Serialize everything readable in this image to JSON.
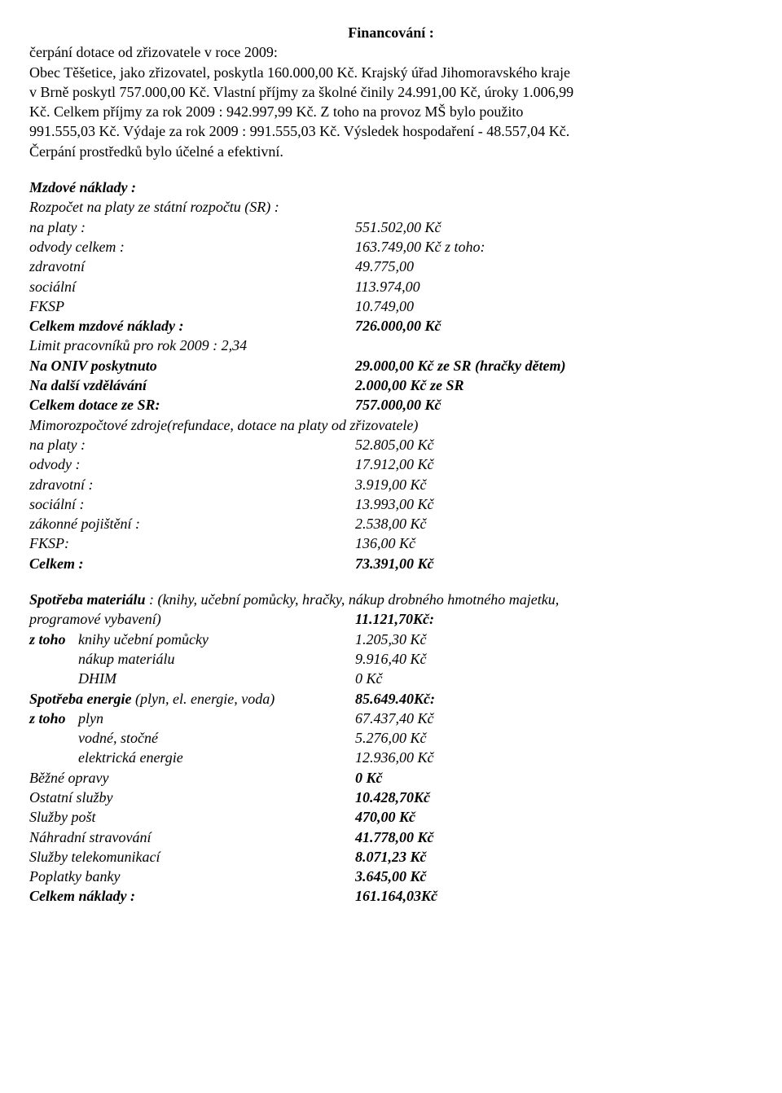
{
  "title": "Financování :",
  "intro": {
    "line1": "čerpání dotace od zřizovatele v roce 2009:",
    "line2a": "Obec Těšetice,  jako zřizovatel,  poskytla 160.000,00 Kč.  Krajský úřad  Jihomoravského kraje",
    "line2b": "v Brně poskytl 757.000,00 Kč.  Vlastní příjmy za školné činily 24.991,00 Kč, úroky 1.006,99",
    "line2c": "Kč.  Celkem příjmy za rok 2009 : 942.997,99 Kč.  Z toho na provoz MŠ bylo použito",
    "line2d": "991.555,03 Kč.  Výdaje za rok 2009 : 991.555,03 Kč.  Výsledek hospodaření - 48.557,04 Kč.",
    "line2e": "Čerpání prostředků bylo účelné a efektivní."
  },
  "mzdove": {
    "heading": "Mzdové náklady :",
    "subheading": "Rozpočet na platy ze státní rozpočtu (SR) :",
    "rows": [
      {
        "label": "na platy :",
        "value": "551.502,00 Kč",
        "labelClass": "italic",
        "valueClass": "italic"
      },
      {
        "label": "odvody celkem  :",
        "value": "163.749,00 Kč z toho:",
        "labelClass": "italic",
        "valueClass": "italic"
      },
      {
        "label": "zdravotní",
        "value": "49.775,00",
        "labelClass": "italic",
        "valueClass": "italic"
      },
      {
        "label": "sociální",
        "value": "113.974,00",
        "labelClass": "italic",
        "valueClass": "italic"
      },
      {
        "label": "FKSP",
        "value": "10.749,00",
        "labelClass": "italic",
        "valueClass": "italic"
      },
      {
        "label": "Celkem mzdové náklady :",
        "value": "726.000,00 Kč",
        "labelClass": "bolditalic",
        "valueClass": "bolditalic"
      }
    ],
    "limitLine": " Limit pracovníků pro rok 2009 : 2,34",
    "rows2": [
      {
        "label": "Na ONIV poskytnuto",
        "value": "29.000,00 Kč ze SR (hračky dětem)",
        "labelClass": "bolditalic",
        "valueClass": "bolditalic"
      },
      {
        "label": "Na další vzdělávání",
        "value": "2.000,00 Kč ze SR",
        "labelClass": "bolditalic",
        "valueClass": "bolditalic"
      },
      {
        "label": " Celkem dotace ze SR:",
        "value": "757.000,00 Kč",
        "labelClass": "bolditalic",
        "valueClass": "bolditalic"
      }
    ],
    "mimoLine": "Mimorozpočtové zdroje(refundace, dotace na platy od zřizovatele)",
    "rows3": [
      {
        "label": "na platy :",
        "value": "52.805,00 Kč",
        "labelClass": "italic",
        "valueClass": "italic"
      },
      {
        "label": "odvody :",
        "value": "17.912,00 Kč",
        "labelClass": "italic",
        "valueClass": "italic"
      },
      {
        "label": "zdravotní :",
        "value": "3.919,00 Kč",
        "labelClass": "italic",
        "valueClass": "italic"
      },
      {
        "label": "sociální :",
        "value": "13.993,00 Kč",
        "labelClass": "italic",
        "valueClass": "italic"
      },
      {
        "label": "zákonné pojištění :",
        "value": "2.538,00 Kč",
        "labelClass": "italic",
        "valueClass": "italic"
      },
      {
        "label": "FKSP:",
        "value": "136,00 Kč",
        "labelClass": "italic",
        "valueClass": "italic"
      },
      {
        "label": "Celkem :",
        "value": "73.391,00 Kč",
        "labelClass": "bolditalic",
        "valueClass": "bolditalic"
      }
    ]
  },
  "spotreba": {
    "line1a": "Spotřeba materiálu",
    "line1b": " : (knihy, učební pomůcky, hračky,  nákup drobného hmotného  majetku,",
    "rows": [
      {
        "label": "programové vybavení)",
        "value": "11.121,70Kč:",
        "labelClass": "italic",
        "valueClass": "bolditalic"
      },
      {
        "label": "z toho",
        "label2": "knihy učební pomůcky",
        "value": "1.205,30 Kč",
        "labelClass": "bolditalic",
        "label2Class": "italic",
        "valueClass": "italic"
      },
      {
        "label": "",
        "label2": "nákup materiálu",
        "value": "9.916,40 Kč",
        "labelClass": "",
        "label2Class": "italic",
        "valueClass": "italic"
      },
      {
        "label": "",
        "label2": "DHIM",
        "value": "0 Kč",
        "labelClass": "",
        "label2Class": "italic",
        "valueClass": "italic"
      },
      {
        "label": "Spotřeba energie",
        "label2": " (plyn, el. energie, voda)",
        "value": "85.649.40Kč:",
        "labelClass": "bolditalic",
        "label2Class": "italic",
        "valueClass": "bolditalic",
        "inline": true
      },
      {
        "label": "z toho",
        "label2": "plyn",
        "value": "67.437,40 Kč",
        "labelClass": "bolditalic",
        "label2Class": "italic",
        "valueClass": "italic"
      },
      {
        "label": "",
        "label2": "vodné, stočné",
        "value": "5.276,00 Kč",
        "labelClass": "",
        "label2Class": "italic",
        "valueClass": "italic"
      },
      {
        "label": "",
        "label2": "elektrická energie",
        "value": "12.936,00 Kč",
        "labelClass": "",
        "label2Class": "italic",
        "valueClass": "italic"
      },
      {
        "label": "Běžné opravy",
        "value": "0 Kč",
        "labelClass": "italic",
        "valueClass": "bolditalic"
      },
      {
        "label": "Ostatní služby",
        "value": "10.428,70Kč",
        "labelClass": "italic",
        "valueClass": "bolditalic"
      },
      {
        "label": "Služby pošt",
        "value": "470,00 Kč",
        "labelClass": "italic",
        "valueClass": "bolditalic"
      },
      {
        "label": "Náhradní stravování",
        "value": "41.778,00 Kč",
        "labelClass": "italic",
        "valueClass": "bolditalic"
      },
      {
        "label": "Služby telekomunikací",
        "value": "8.071,23 Kč",
        "labelClass": "italic",
        "valueClass": "bolditalic"
      },
      {
        "label": "Poplatky banky",
        "value": "3.645,00 Kč",
        "labelClass": "italic",
        "valueClass": "bolditalic"
      },
      {
        "label": "Celkem náklady :",
        "value": "161.164,03Kč",
        "labelClass": "bolditalic",
        "valueClass": "bolditalic"
      }
    ]
  }
}
